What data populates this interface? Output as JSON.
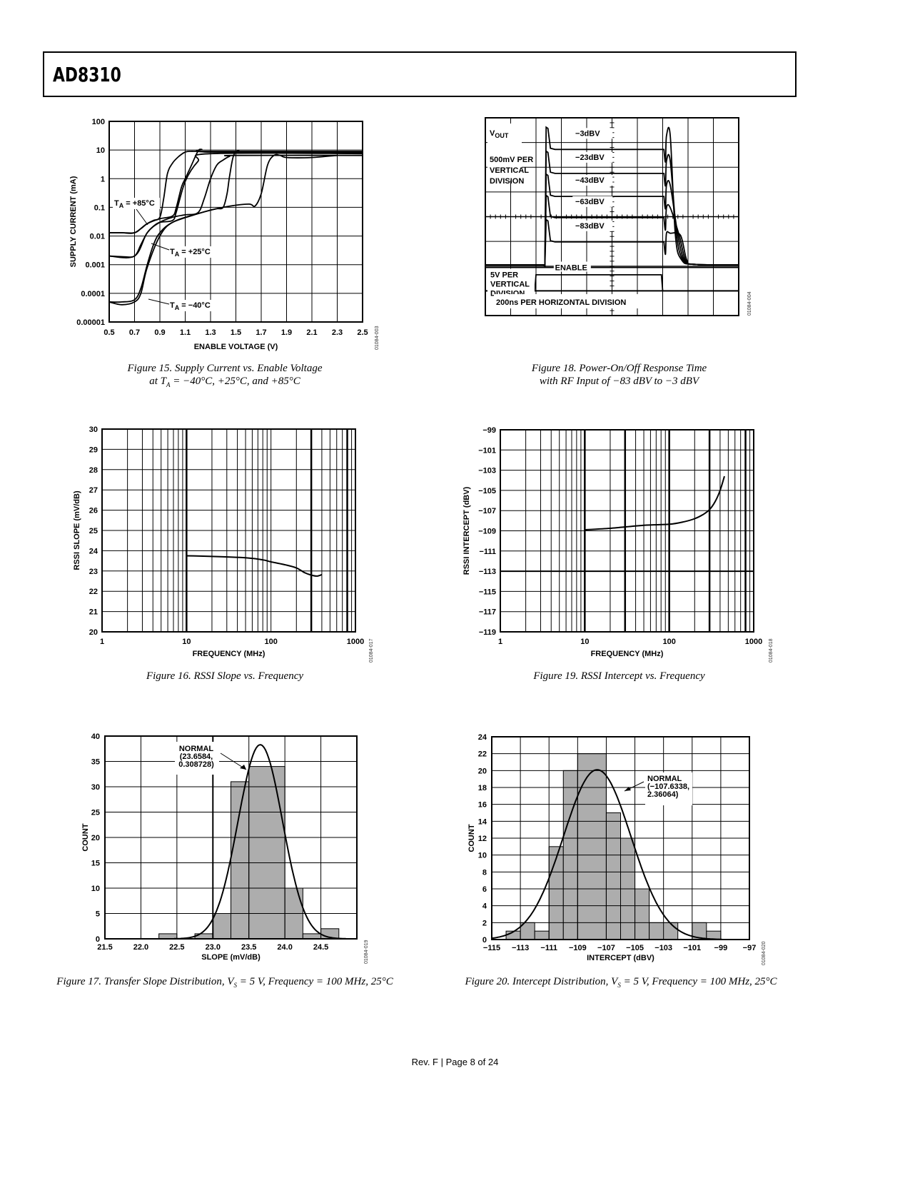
{
  "header": {
    "title": "AD8310"
  },
  "footer": {
    "text": "Rev. F | Page 8 of 24"
  },
  "chart_data": [
    {
      "id": "fig15",
      "type": "line",
      "caption_line1": "Figure 15. Supply Current vs. Enable Voltage",
      "caption_line2_pre": "at T",
      "caption_line2_sub": "A",
      "caption_line2_post": " = −40°C, +25°C, and +85°C",
      "xlabel": "ENABLE VOLTAGE (V)",
      "ylabel": "SUPPLY CURRENT (mA)",
      "xlim": [
        0.5,
        2.5
      ],
      "ylim_log": [
        1e-05,
        100
      ],
      "xticks": [
        "0.5",
        "0.7",
        "0.9",
        "1.1",
        "1.3",
        "1.5",
        "1.7",
        "1.9",
        "2.1",
        "2.3",
        "2.5"
      ],
      "yticks": [
        "100",
        "10",
        "1",
        "0.1",
        "0.01",
        "0.001",
        "0.0001",
        "0.00001"
      ],
      "figure_code": "01084-003",
      "annotations": [
        {
          "pre": "T",
          "sub": "A",
          "post": " = +85°C"
        },
        {
          "pre": "T",
          "sub": "A",
          "post": " = +25°C"
        },
        {
          "pre": "T",
          "sub": "A",
          "post": " = −40°C"
        }
      ],
      "series": [
        {
          "name": "+85°C rising",
          "x": [
            0.5,
            0.6,
            0.7,
            0.75,
            0.8,
            0.85,
            0.9,
            0.93,
            0.96,
            1.0,
            1.05,
            1.1,
            1.15,
            1.3,
            2.5
          ],
          "y": [
            0.013,
            0.013,
            0.013,
            0.018,
            0.027,
            0.035,
            0.045,
            0.2,
            1.5,
            3.5,
            6,
            8.5,
            9,
            9,
            9
          ]
        },
        {
          "name": "+85°C falling",
          "x": [
            0.5,
            0.6,
            0.7,
            0.8,
            0.9,
            1.0,
            1.03,
            1.07,
            1.1,
            1.15,
            1.2,
            1.23,
            1.3,
            2.5
          ],
          "y": [
            0.013,
            0.013,
            0.013,
            0.027,
            0.04,
            0.05,
            0.1,
            0.5,
            1,
            3,
            9,
            10.5,
            8.5,
            8.5
          ]
        },
        {
          "name": "+25°C rising",
          "x": [
            0.5,
            0.6,
            0.7,
            0.75,
            0.8,
            0.85,
            0.9,
            1.0,
            1.03,
            1.1,
            1.2,
            1.3,
            2.5
          ],
          "y": [
            0.002,
            0.0019,
            0.002,
            0.005,
            0.013,
            0.022,
            0.03,
            0.035,
            0.07,
            0.8,
            4,
            7.5,
            7.5
          ]
        },
        {
          "name": "+25°C falling",
          "x": [
            0.5,
            0.7,
            0.8,
            0.9,
            1.0,
            1.1,
            1.2,
            1.25,
            1.3,
            1.35,
            1.4,
            1.45,
            1.5,
            2.5
          ],
          "y": [
            0.002,
            0.002,
            0.013,
            0.03,
            0.045,
            0.055,
            0.065,
            0.2,
            1,
            3,
            4.5,
            6,
            6.5,
            6.5
          ]
        },
        {
          "name": "-40°C rising",
          "x": [
            0.5,
            0.6,
            0.7,
            0.75,
            0.8,
            0.85,
            0.9,
            1.0,
            1.2,
            1.3,
            1.35,
            1.4,
            1.43,
            1.45,
            1.48,
            1.52,
            1.6,
            2.5
          ],
          "y": [
            5e-05,
            5e-05,
            6e-05,
            0.00015,
            0.001,
            0.005,
            0.013,
            0.03,
            0.06,
            0.08,
            0.09,
            0.1,
            0.3,
            1.2,
            6,
            9.5,
            8,
            8
          ]
        },
        {
          "name": "-40°C falling",
          "x": [
            0.5,
            0.6,
            0.7,
            0.75,
            0.8,
            0.9,
            1.0,
            1.2,
            1.4,
            1.6,
            1.65,
            1.7,
            1.75,
            1.8,
            1.85,
            1.9,
            2.1,
            2.3
          ],
          "y": [
            5e-05,
            4e-05,
            5e-05,
            0.0001,
            0.0008,
            0.01,
            0.03,
            0.06,
            0.1,
            0.13,
            0.11,
            0.3,
            3,
            6.5,
            6.5,
            5.5,
            5.5,
            6.5
          ]
        }
      ]
    },
    {
      "id": "fig18",
      "type": "line",
      "caption_line1": "Figure 18. Power-On/Off Response Time",
      "caption_line2": "with RF Input of −83 dBV to −3 dBV",
      "figure_code": "01084-004",
      "labels": {
        "vout_pre": "V",
        "vout_sub": "OUT",
        "vscale1": "500mV PER",
        "vscale2": "VERTICAL",
        "vscale3": "DIVISION",
        "escale1": "5V PER",
        "escale2": "VERTICAL",
        "escale3": "DIVISION",
        "enable": "ENABLE",
        "hscale": "200ns PER HORIZONTAL DIVISION"
      },
      "xdivisions": 10,
      "ydivisions": 8,
      "series": [
        {
          "name": "−3dBV",
          "level_div": 6.72
        },
        {
          "name": "−23dBV",
          "level_div": 5.75
        },
        {
          "name": "−43dBV",
          "level_div": 4.82
        },
        {
          "name": "−63dBV",
          "level_div": 3.96
        },
        {
          "name": "−83dBV",
          "level_div": 2.98
        }
      ],
      "baseline_div": 2.05,
      "on_time_div": 2.35,
      "off_time_div": 7.05
    },
    {
      "id": "fig16",
      "type": "line",
      "caption": "Figure 16. RSSI Slope vs. Frequency",
      "xlabel": "FREQUENCY (MHz)",
      "ylabel": "RSSI SLOPE (mV/dB)",
      "xscale": "log",
      "xlim": [
        1,
        1000
      ],
      "ylim": [
        20,
        30
      ],
      "xticks": [
        "1",
        "10",
        "100",
        "1000"
      ],
      "yticks": [
        "30",
        "29",
        "28",
        "27",
        "26",
        "25",
        "24",
        "23",
        "22",
        "21",
        "20"
      ],
      "figure_code": "01084-017",
      "x": [
        10,
        20,
        50,
        80,
        100,
        150,
        200,
        250,
        300,
        350,
        400
      ],
      "y": [
        23.75,
        23.72,
        23.65,
        23.55,
        23.45,
        23.3,
        23.15,
        22.92,
        22.8,
        22.75,
        22.82
      ]
    },
    {
      "id": "fig19",
      "type": "line",
      "caption": "Figure 19. RSSI Intercept vs. Frequency",
      "xlabel": "FREQUENCY (MHz)",
      "ylabel": "RSSI INTERCEPT (dBV)",
      "xscale": "log",
      "xlim": [
        1,
        1000
      ],
      "ylim": [
        -119,
        -99
      ],
      "xticks": [
        "1",
        "10",
        "100",
        "1000"
      ],
      "yticks": [
        "−99",
        "−101",
        "−103",
        "−105",
        "−107",
        "−109",
        "−111",
        "−113",
        "−115",
        "−117",
        "−119"
      ],
      "figure_code": "01084-018",
      "x": [
        10,
        20,
        50,
        100,
        150,
        200,
        250,
        300,
        350,
        400,
        450
      ],
      "y": [
        -108.9,
        -108.75,
        -108.45,
        -108.35,
        -108.1,
        -107.8,
        -107.4,
        -106.9,
        -106.1,
        -105.0,
        -103.6
      ]
    },
    {
      "id": "fig17",
      "type": "bar",
      "caption_pre": "Figure 17. Transfer Slope Distribution, V",
      "caption_sub": "S",
      "caption_post": " = 5 V, Frequency = 100 MHz, 25°C",
      "xlabel": "SLOPE (mV/dB)",
      "ylabel": "COUNT",
      "xlim": [
        21.5,
        25.0
      ],
      "ylim": [
        0,
        40
      ],
      "xticks": [
        "21.5",
        "22.0",
        "22.5",
        "23.0",
        "23.5",
        "24.0",
        "24.5"
      ],
      "yticks": [
        "40",
        "35",
        "30",
        "25",
        "20",
        "15",
        "10",
        "5",
        "0"
      ],
      "figure_code": "01084-019",
      "bins": [
        {
          "from": 22.25,
          "to": 22.5,
          "count": 1
        },
        {
          "from": 22.75,
          "to": 23.0,
          "count": 1
        },
        {
          "from": 23.0,
          "to": 23.25,
          "count": 5
        },
        {
          "from": 23.25,
          "to": 23.5,
          "count": 31
        },
        {
          "from": 23.5,
          "to": 24.0,
          "count": 34
        },
        {
          "from": 24.0,
          "to": 24.25,
          "count": 10
        },
        {
          "from": 24.25,
          "to": 24.5,
          "count": 1
        },
        {
          "from": 24.5,
          "to": 24.75,
          "count": 2
        }
      ],
      "normal_fit": {
        "mean": 23.6584,
        "sd": 0.308728,
        "peak": 38.3
      },
      "annotation": [
        "NORMAL",
        "(23.6584,",
        "0.308728)"
      ]
    },
    {
      "id": "fig20",
      "type": "bar",
      "caption_pre": "Figure 20. Intercept Distribution, V",
      "caption_sub": "S",
      "caption_post": " = 5 V, Frequency = 100 MHz, 25°C",
      "xlabel": "INTERCEPT (dBV)",
      "ylabel": "COUNT",
      "xlim": [
        -115,
        -97
      ],
      "ylim": [
        0,
        24
      ],
      "xticks": [
        "−115",
        "−113",
        "−111",
        "−109",
        "−107",
        "−105",
        "−103",
        "−101",
        "−99",
        "−97"
      ],
      "yticks": [
        "24",
        "22",
        "20",
        "18",
        "16",
        "14",
        "12",
        "10",
        "8",
        "6",
        "4",
        "2",
        "0"
      ],
      "figure_code": "01084-020",
      "bins": [
        {
          "from": -114,
          "to": -113,
          "count": 1
        },
        {
          "from": -113,
          "to": -112,
          "count": 2
        },
        {
          "from": -112,
          "to": -111,
          "count": 1
        },
        {
          "from": -111,
          "to": -110,
          "count": 11
        },
        {
          "from": -110,
          "to": -109,
          "count": 20
        },
        {
          "from": -109,
          "to": -107,
          "count": 22
        },
        {
          "from": -107,
          "to": -106,
          "count": 15
        },
        {
          "from": -106,
          "to": -105,
          "count": 12
        },
        {
          "from": -105,
          "to": -104,
          "count": 6
        },
        {
          "from": -104,
          "to": -102,
          "count": 2
        },
        {
          "from": -101,
          "to": -100,
          "count": 2
        },
        {
          "from": -100,
          "to": -99,
          "count": 1
        }
      ],
      "normal_fit": {
        "mean": -107.6338,
        "sd": 2.36064,
        "peak": 20.1
      },
      "annotation": [
        "NORMAL",
        "(−107.6338,",
        "2.36064)"
      ]
    }
  ]
}
